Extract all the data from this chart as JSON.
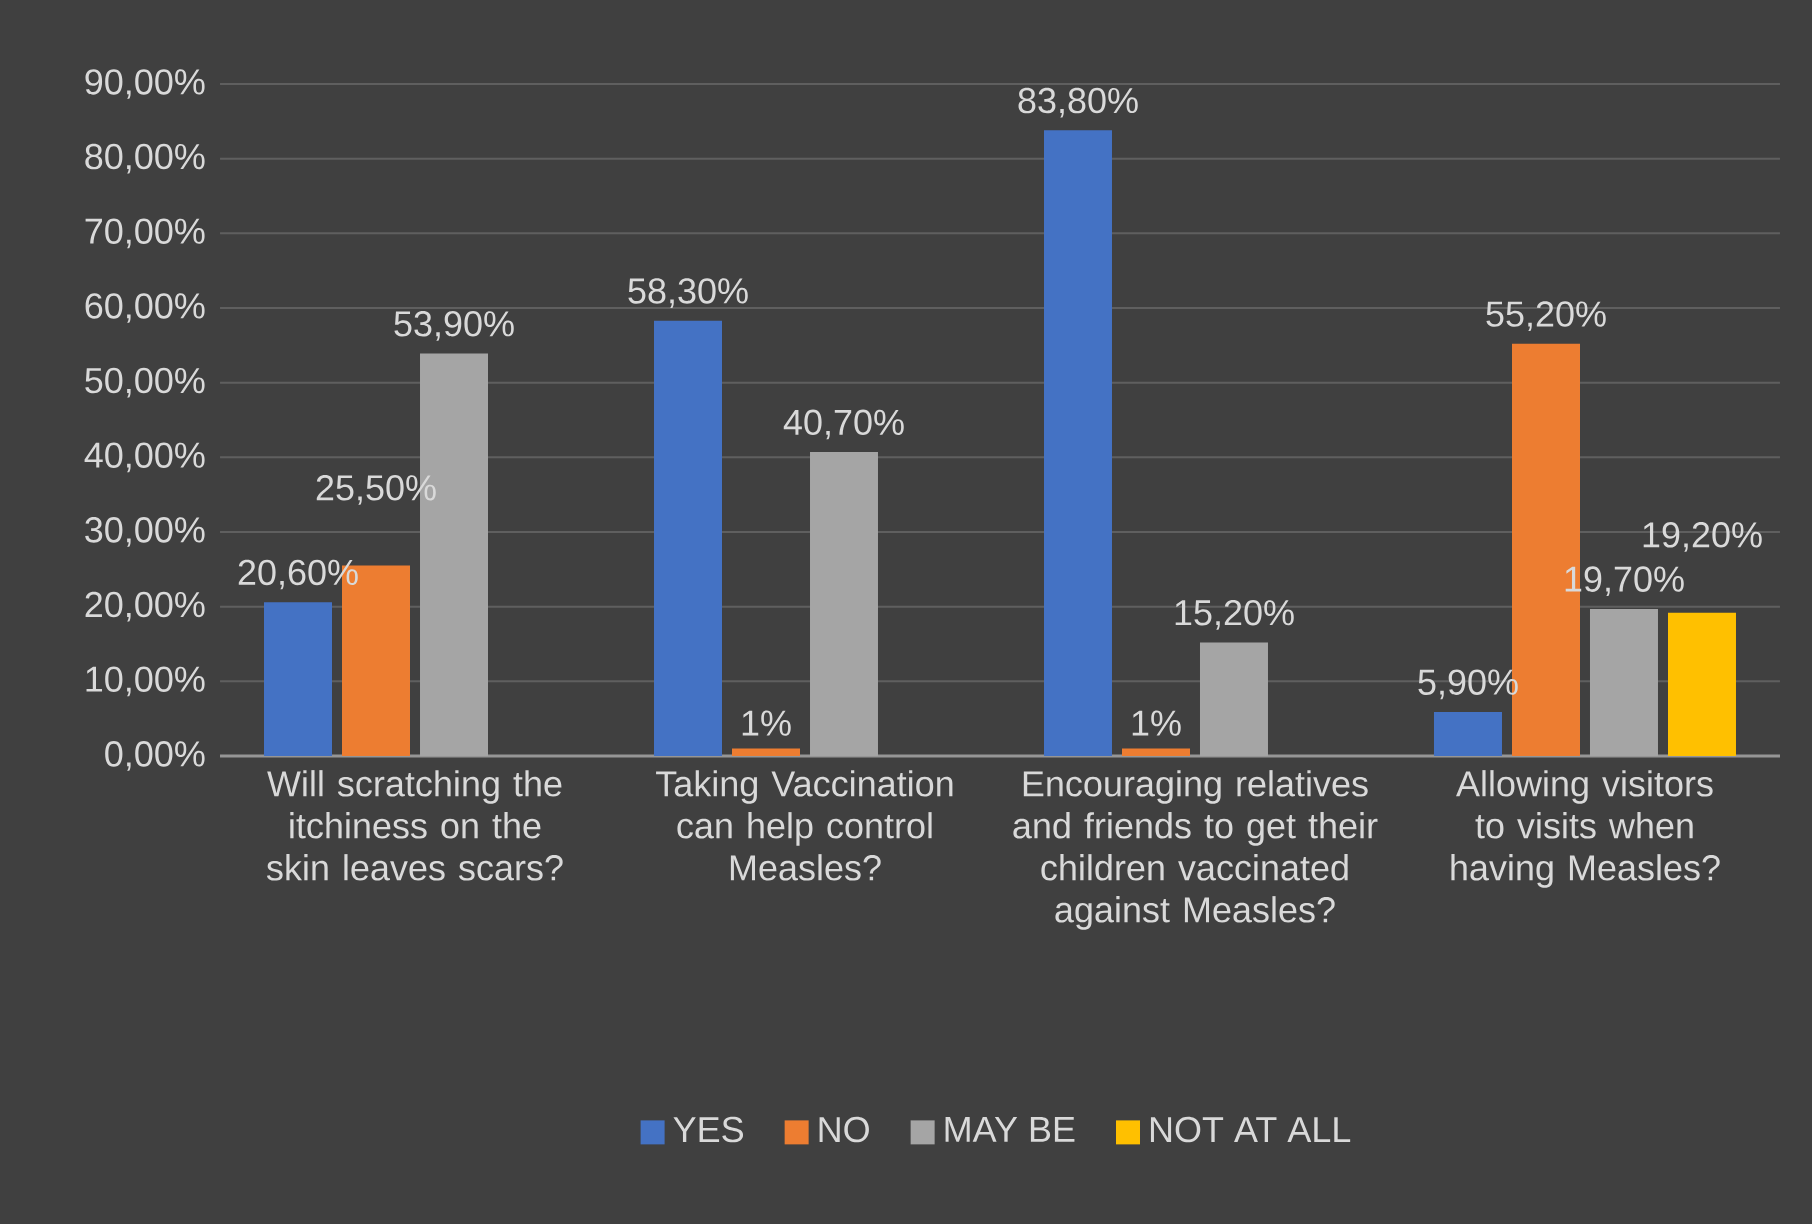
{
  "chart_data": {
    "type": "bar",
    "categories": [
      "Will scratching the itchiness on the skin leaves scars?",
      "Taking Vaccination can help control Measles?",
      "Encouraging relatives and friends to get their children vaccinated against Measles?",
      "Allowing visitors to visits when having Measles?"
    ],
    "series": [
      {
        "name": "YES",
        "color": "#4472c4",
        "values": [
          20.6,
          58.3,
          83.8,
          5.9
        ],
        "value_labels": [
          "20,60%",
          "58,30%",
          "83,80%",
          "5,90%"
        ]
      },
      {
        "name": "NO",
        "color": "#ed7d31",
        "values": [
          25.5,
          1,
          1,
          55.2
        ],
        "value_labels": [
          "25,50%",
          "1%",
          "1%",
          "55,20%"
        ]
      },
      {
        "name": "MAY BE",
        "color": "#a5a5a5",
        "values": [
          53.9,
          40.7,
          15.2,
          19.7
        ],
        "value_labels": [
          "53,90%",
          "40,70%",
          "15,20%",
          "19,70%"
        ]
      },
      {
        "name": "NOT AT ALL",
        "color": "#ffc000",
        "values": [
          null,
          null,
          null,
          19.2
        ],
        "value_labels": [
          null,
          null,
          null,
          "19,20%"
        ]
      }
    ],
    "ylim": [
      0,
      90
    ],
    "yticks": [
      {
        "value": 0,
        "label": "0,00%"
      },
      {
        "value": 10,
        "label": "10,00%"
      },
      {
        "value": 20,
        "label": "20,00%"
      },
      {
        "value": 30,
        "label": "30,00%"
      },
      {
        "value": 40,
        "label": "40,00%"
      },
      {
        "value": 50,
        "label": "50,00%"
      },
      {
        "value": 60,
        "label": "60,00%"
      },
      {
        "value": 70,
        "label": "70,00%"
      },
      {
        "value": 80,
        "label": "80,00%"
      },
      {
        "value": 90,
        "label": "90,00%"
      }
    ],
    "grid": "y",
    "legend": "bottom"
  }
}
